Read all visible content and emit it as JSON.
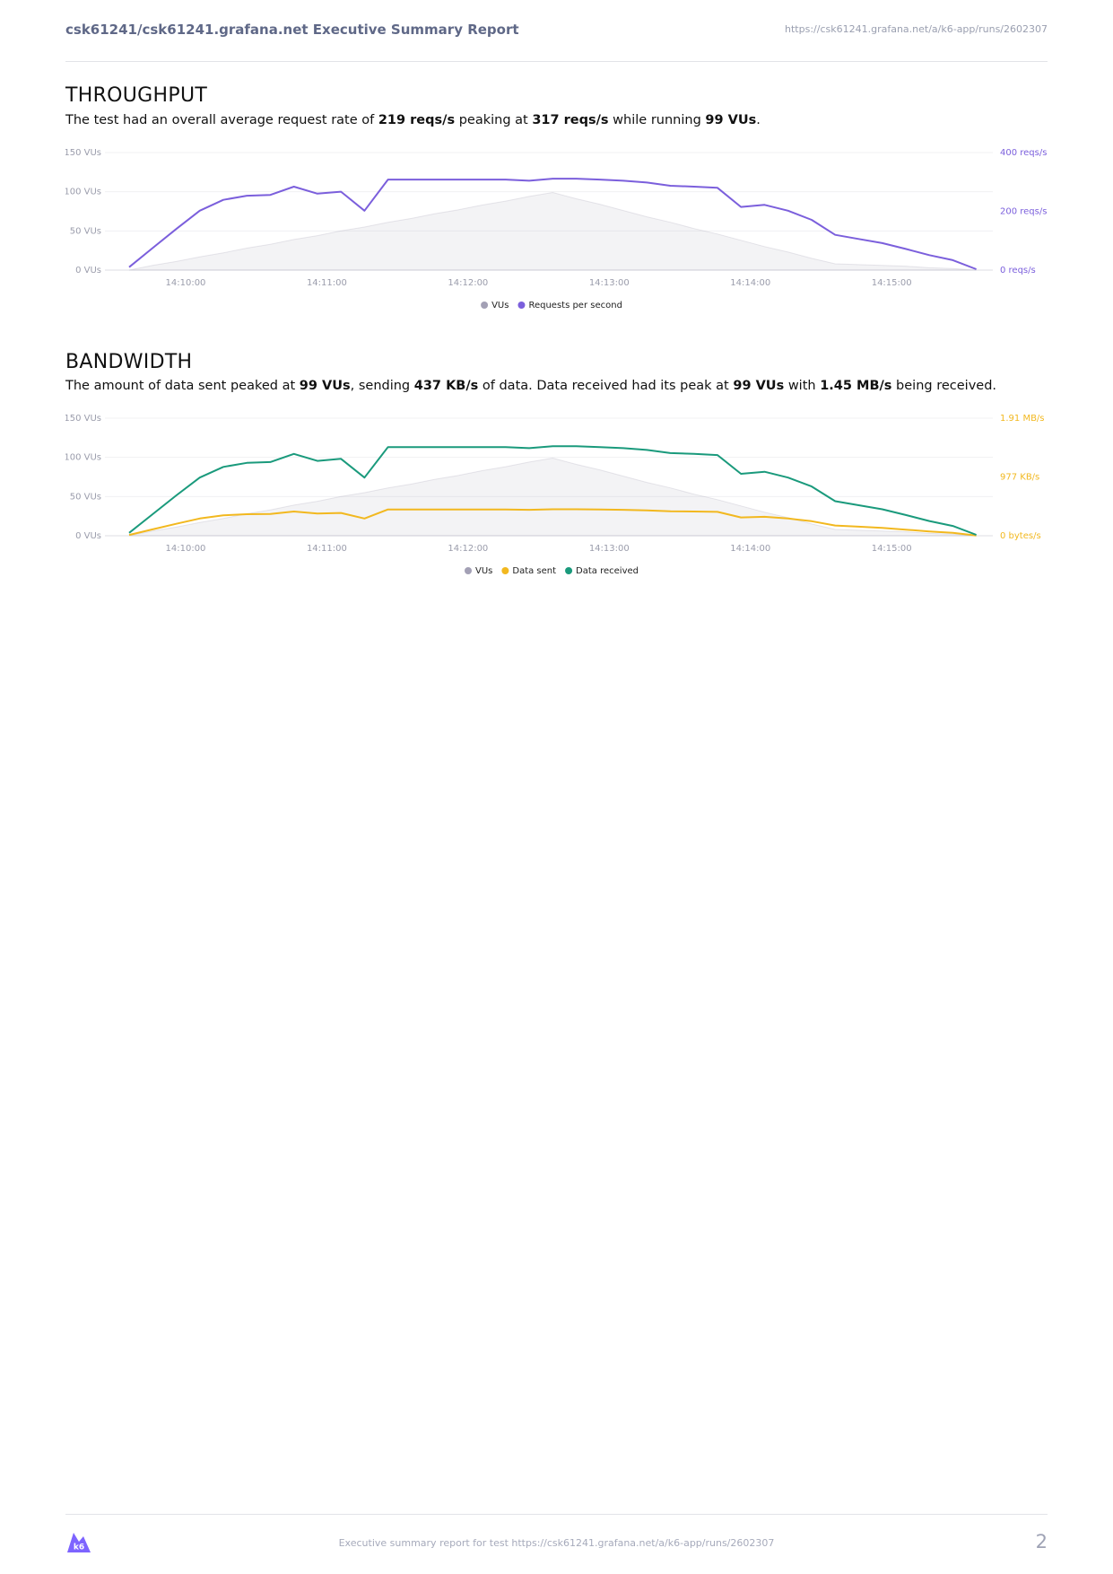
{
  "header": {
    "title": "csk61241/csk61241.grafana.net Executive Summary Report",
    "url": "https://csk61241.grafana.net/a/k6-app/runs/2602307"
  },
  "sections": [
    {
      "heading": "THROUGHPUT",
      "summary": [
        {
          "text": "The test had an overall average request rate of ",
          "bold": false
        },
        {
          "text": "219 reqs/s",
          "bold": true
        },
        {
          "text": " peaking at ",
          "bold": false
        },
        {
          "text": "317 reqs/s",
          "bold": true
        },
        {
          "text": " while running ",
          "bold": false
        },
        {
          "text": "99 VUs",
          "bold": true
        },
        {
          "text": ".",
          "bold": false
        }
      ]
    },
    {
      "heading": "BANDWIDTH",
      "summary": [
        {
          "text": "The amount of data sent peaked at ",
          "bold": false
        },
        {
          "text": "99 VUs",
          "bold": true
        },
        {
          "text": ", sending ",
          "bold": false
        },
        {
          "text": "437 KB/s",
          "bold": true
        },
        {
          "text": " of data. Data received had its peak at ",
          "bold": false
        },
        {
          "text": "99 VUs",
          "bold": true
        },
        {
          "text": " with ",
          "bold": false
        },
        {
          "text": "1.45 MB/s",
          "bold": true
        },
        {
          "text": " being received.",
          "bold": false
        }
      ]
    }
  ],
  "chart_data": [
    {
      "type": "line",
      "x": [
        "14:09:36",
        "14:09:46",
        "14:09:56",
        "14:10:06",
        "14:10:16",
        "14:10:26",
        "14:10:36",
        "14:10:46",
        "14:10:56",
        "14:11:06",
        "14:11:16",
        "14:11:26",
        "14:11:36",
        "14:11:46",
        "14:11:56",
        "14:12:06",
        "14:12:16",
        "14:12:26",
        "14:12:36",
        "14:12:46",
        "14:12:56",
        "14:13:06",
        "14:13:16",
        "14:13:26",
        "14:13:36",
        "14:13:46",
        "14:13:56",
        "14:14:06",
        "14:14:16",
        "14:14:26",
        "14:14:36",
        "14:14:46",
        "14:14:56",
        "14:15:06",
        "14:15:16",
        "14:15:26",
        "14:15:36"
      ],
      "xlim": [
        "14:09:28",
        "14:15:43"
      ],
      "xticks": [
        "14:10:00",
        "14:11:00",
        "14:12:00",
        "14:13:00",
        "14:14:00",
        "14:15:00"
      ],
      "ylim": [
        0,
        150
      ],
      "yticks": [
        {
          "value": 0,
          "label": "0 VUs"
        },
        {
          "value": 50,
          "label": "50 VUs"
        },
        {
          "value": 100,
          "label": "100 VUs"
        },
        {
          "value": 150,
          "label": "150 VUs"
        }
      ],
      "y2lim": [
        0,
        400
      ],
      "y2ticks": [
        {
          "value": 0,
          "label": "0 reqs/s"
        },
        {
          "value": 200,
          "label": "200 reqs/s"
        },
        {
          "value": 400,
          "label": "400 reqs/s"
        }
      ],
      "grid": true,
      "legend": "bottom",
      "series": [
        {
          "name": "VUs",
          "color": "#a3a0b5",
          "area": true,
          "values": [
            0,
            6,
            11,
            17,
            22,
            28,
            33,
            39,
            44,
            50,
            55,
            61,
            66,
            72,
            77,
            83,
            88,
            94,
            99,
            91,
            84,
            76,
            68,
            61,
            53,
            46,
            38,
            30,
            23,
            15,
            8,
            7,
            6,
            5,
            3,
            2,
            0
          ]
        },
        {
          "name": "Requests per second",
          "color": "#7b5fdc",
          "axis": "y2",
          "values": [
            10,
            75,
            140,
            202,
            239,
            253,
            256,
            284,
            260,
            267,
            202,
            308,
            308,
            308,
            308,
            308,
            308,
            304,
            311,
            311,
            308,
            304,
            298,
            287,
            284,
            280,
            215,
            222,
            202,
            171,
            120,
            106,
            92,
            72,
            51,
            34,
            3
          ]
        }
      ]
    },
    {
      "type": "line",
      "x": [
        "14:09:36",
        "14:09:46",
        "14:09:56",
        "14:10:06",
        "14:10:16",
        "14:10:26",
        "14:10:36",
        "14:10:46",
        "14:10:56",
        "14:11:06",
        "14:11:16",
        "14:11:26",
        "14:11:36",
        "14:11:46",
        "14:11:56",
        "14:12:06",
        "14:12:16",
        "14:12:26",
        "14:12:36",
        "14:12:46",
        "14:12:56",
        "14:13:06",
        "14:13:16",
        "14:13:26",
        "14:13:36",
        "14:13:46",
        "14:13:56",
        "14:14:06",
        "14:14:16",
        "14:14:26",
        "14:14:36",
        "14:14:46",
        "14:14:56",
        "14:15:06",
        "14:15:16",
        "14:15:26",
        "14:15:36"
      ],
      "xlim": [
        "14:09:28",
        "14:15:43"
      ],
      "xticks": [
        "14:10:00",
        "14:11:00",
        "14:12:00",
        "14:13:00",
        "14:14:00",
        "14:15:00"
      ],
      "ylim": [
        0,
        150
      ],
      "yticks": [
        {
          "value": 0,
          "label": "0 VUs"
        },
        {
          "value": 50,
          "label": "50 VUs"
        },
        {
          "value": 100,
          "label": "100 VUs"
        },
        {
          "value": 150,
          "label": "150 VUs"
        }
      ],
      "y2lim": [
        0,
        2000000
      ],
      "y2ticks": [
        {
          "value": 0,
          "label": "0 bytes/s"
        },
        {
          "value": 1000000,
          "label": "977 KB/s"
        },
        {
          "value": 2000000,
          "label": "1.91 MB/s"
        }
      ],
      "grid": true,
      "legend": "bottom",
      "series": [
        {
          "name": "VUs",
          "color": "#a3a0b5",
          "area": true,
          "values": [
            0,
            6,
            11,
            17,
            22,
            28,
            33,
            39,
            44,
            50,
            55,
            61,
            66,
            72,
            77,
            83,
            88,
            94,
            99,
            91,
            84,
            76,
            68,
            61,
            53,
            46,
            38,
            30,
            23,
            15,
            8,
            7,
            6,
            5,
            3,
            2,
            0
          ]
        },
        {
          "name": "Data sent",
          "color": "#f2b81f",
          "axis": "y2",
          "values": [
            14500,
            108750,
            203000,
            292900,
            346550,
            366850,
            371200,
            411800,
            377000,
            387150,
            292900,
            446600,
            446600,
            446600,
            446600,
            446600,
            446600,
            440800,
            450950,
            450950,
            446600,
            440800,
            432100,
            416150,
            411800,
            406000,
            311750,
            321900,
            292900,
            247950,
            174000,
            153700,
            133400,
            104400,
            73950,
            49300,
            4350
          ]
        },
        {
          "name": "Data received",
          "color": "#1a9a7c",
          "axis": "y2",
          "values": [
            49000,
            367000,
            686000,
            990000,
            1171000,
            1240000,
            1254000,
            1392000,
            1274000,
            1308000,
            990000,
            1509000,
            1509000,
            1509000,
            1509000,
            1509000,
            1509000,
            1490000,
            1524000,
            1524000,
            1509000,
            1490000,
            1460000,
            1406000,
            1392000,
            1372000,
            1054000,
            1088000,
            990000,
            838000,
            588000,
            519000,
            451000,
            353000,
            250000,
            167000,
            15000
          ]
        }
      ]
    }
  ],
  "footer": {
    "logo_text": "k6",
    "text": "Executive summary report for test https://csk61241.grafana.net/a/k6-app/runs/2602307",
    "page": 2
  }
}
